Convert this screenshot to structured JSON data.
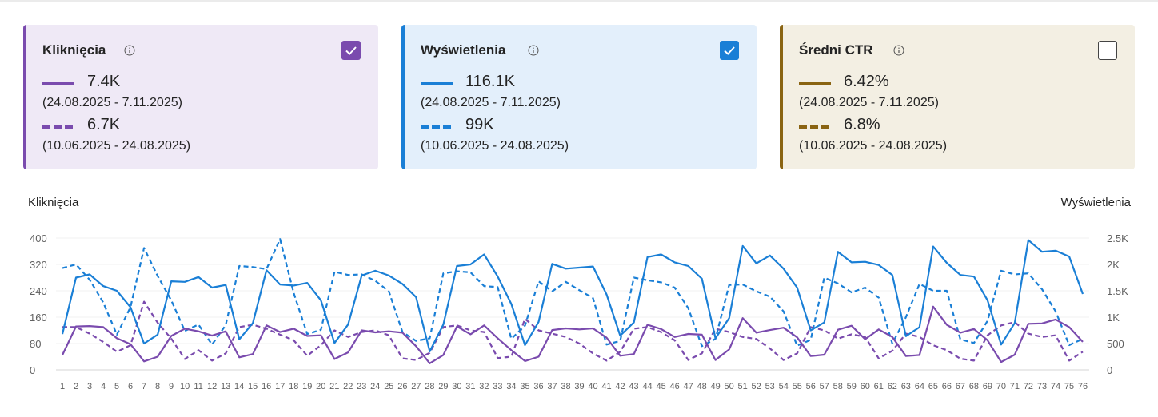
{
  "cards": [
    {
      "title": "Kliknięcia",
      "checked": true,
      "color": "#7a4bae",
      "current_value": "7.4K",
      "current_range": "(24.08.2025 - 7.11.2025)",
      "previous_value": "6.7K",
      "previous_range": "(10.06.2025 - 24.08.2025)"
    },
    {
      "title": "Wyświetlenia",
      "checked": true,
      "color": "#1a7fd6",
      "current_value": "116.1K",
      "current_range": "(24.08.2025 - 7.11.2025)",
      "previous_value": "99K",
      "previous_range": "(10.06.2025 - 24.08.2025)"
    },
    {
      "title": "Średni CTR",
      "checked": false,
      "color": "#8a6413",
      "current_value": "6.42%",
      "current_range": "(24.08.2025 - 7.11.2025)",
      "previous_value": "6.8%",
      "previous_range": "(10.06.2025 - 24.08.2025)"
    }
  ],
  "chart_data": {
    "type": "line",
    "left_axis_title": "Kliknięcia",
    "right_axis_title": "Wyświetlenia",
    "left_ylim": [
      0,
      400
    ],
    "left_ticks": [
      "0",
      "80",
      "160",
      "240",
      "320",
      "400"
    ],
    "right_ylim": [
      0,
      2500
    ],
    "right_ticks": [
      "0",
      "500",
      "1K",
      "1.5K",
      "2K",
      "2.5K"
    ],
    "grid": true,
    "x": [
      1,
      2,
      3,
      4,
      5,
      6,
      7,
      8,
      9,
      10,
      11,
      12,
      13,
      14,
      15,
      16,
      17,
      18,
      19,
      20,
      21,
      22,
      23,
      24,
      25,
      26,
      27,
      28,
      29,
      30,
      31,
      32,
      33,
      34,
      35,
      36,
      37,
      38,
      39,
      40,
      41,
      42,
      43,
      44,
      45,
      46,
      47,
      48,
      49,
      50,
      51,
      52,
      53,
      54,
      55,
      56,
      57,
      58,
      59,
      60,
      61,
      62,
      63,
      64,
      65,
      66,
      67,
      68,
      69,
      70,
      71,
      72,
      73,
      74,
      75,
      76
    ],
    "series": [
      {
        "name": "Kliknięcia",
        "axis": "left",
        "style": "solid",
        "color": "#7a4bae",
        "values": [
          45,
          132,
          133,
          130,
          96,
          78,
          26,
          40,
          103,
          125,
          117,
          104,
          117,
          38,
          48,
          135,
          115,
          125,
          103,
          105,
          33,
          53,
          120,
          114,
          117,
          113,
          72,
          20,
          45,
          132,
          108,
          135,
          96,
          60,
          27,
          40,
          121,
          126,
          123,
          126,
          98,
          43,
          48,
          137,
          124,
          100,
          109,
          107,
          30,
          62,
          157,
          113,
          121,
          128,
          99,
          42,
          46,
          122,
          134,
          93,
          123,
          100,
          42,
          45,
          192,
          137,
          113,
          124,
          90,
          24,
          46,
          140,
          141,
          153,
          130,
          85
        ],
        "note": "current period (24.08.2025 - 7.11.2025)"
      },
      {
        "name": "Kliknięcia",
        "axis": "left",
        "style": "dashed",
        "color": "#7a4bae",
        "values": [
          130,
          130,
          110,
          85,
          55,
          75,
          207,
          143,
          95,
          33,
          60,
          28,
          50,
          130,
          137,
          125,
          107,
          90,
          43,
          75,
          120,
          100,
          115,
          120,
          105,
          35,
          30,
          52,
          130,
          135,
          120,
          115,
          36,
          40,
          155,
          120,
          110,
          100,
          80,
          50,
          28,
          55,
          125,
          130,
          115,
          90,
          30,
          50,
          125,
          115,
          100,
          94,
          65,
          30,
          50,
          130,
          120,
          95,
          108,
          100,
          35,
          58,
          110,
          100,
          75,
          60,
          34,
          28,
          105,
          135,
          145,
          110,
          100,
          105,
          28,
          55
        ]
      },
      {
        "name": "Wyświetlenia",
        "axis": "right",
        "style": "solid",
        "color": "#1a7fd6",
        "values": [
          680,
          1750,
          1810,
          1590,
          1500,
          1190,
          500,
          670,
          1680,
          1670,
          1760,
          1560,
          1610,
          580,
          890,
          1890,
          1620,
          1600,
          1650,
          1320,
          510,
          860,
          1790,
          1880,
          1790,
          1630,
          1380,
          350,
          860,
          1970,
          2000,
          2190,
          1770,
          1250,
          470,
          910,
          2010,
          1920,
          1940,
          1960,
          1430,
          650,
          900,
          2140,
          2190,
          2040,
          1970,
          1730,
          600,
          980,
          2350,
          2020,
          2170,
          1920,
          1560,
          750,
          900,
          2240,
          2040,
          2050,
          1990,
          1800,
          640,
          810,
          2340,
          2030,
          1800,
          1770,
          1320,
          480,
          890,
          2460,
          2240,
          2260,
          2150,
          1440
        ]
      },
      {
        "name": "Wyświetlenia",
        "axis": "right",
        "style": "dashed",
        "color": "#1a7fd6",
        "values": [
          1930,
          2000,
          1710,
          1280,
          670,
          1190,
          2310,
          1780,
          1320,
          740,
          860,
          480,
          850,
          1970,
          1950,
          1910,
          2480,
          1460,
          680,
          760,
          1860,
          1800,
          1810,
          1690,
          1490,
          720,
          550,
          600,
          1830,
          1870,
          1850,
          1590,
          1570,
          590,
          840,
          1680,
          1490,
          1670,
          1510,
          1360,
          480,
          550,
          1750,
          1700,
          1660,
          1560,
          1170,
          450,
          590,
          1610,
          1620,
          1490,
          1390,
          1110,
          460,
          570,
          1750,
          1640,
          1470,
          1560,
          1370,
          500,
          1000,
          1630,
          1500,
          1500,
          580,
          510,
          930,
          1880,
          1810,
          1830,
          1530,
          1110,
          470,
          590
        ]
      }
    ]
  }
}
